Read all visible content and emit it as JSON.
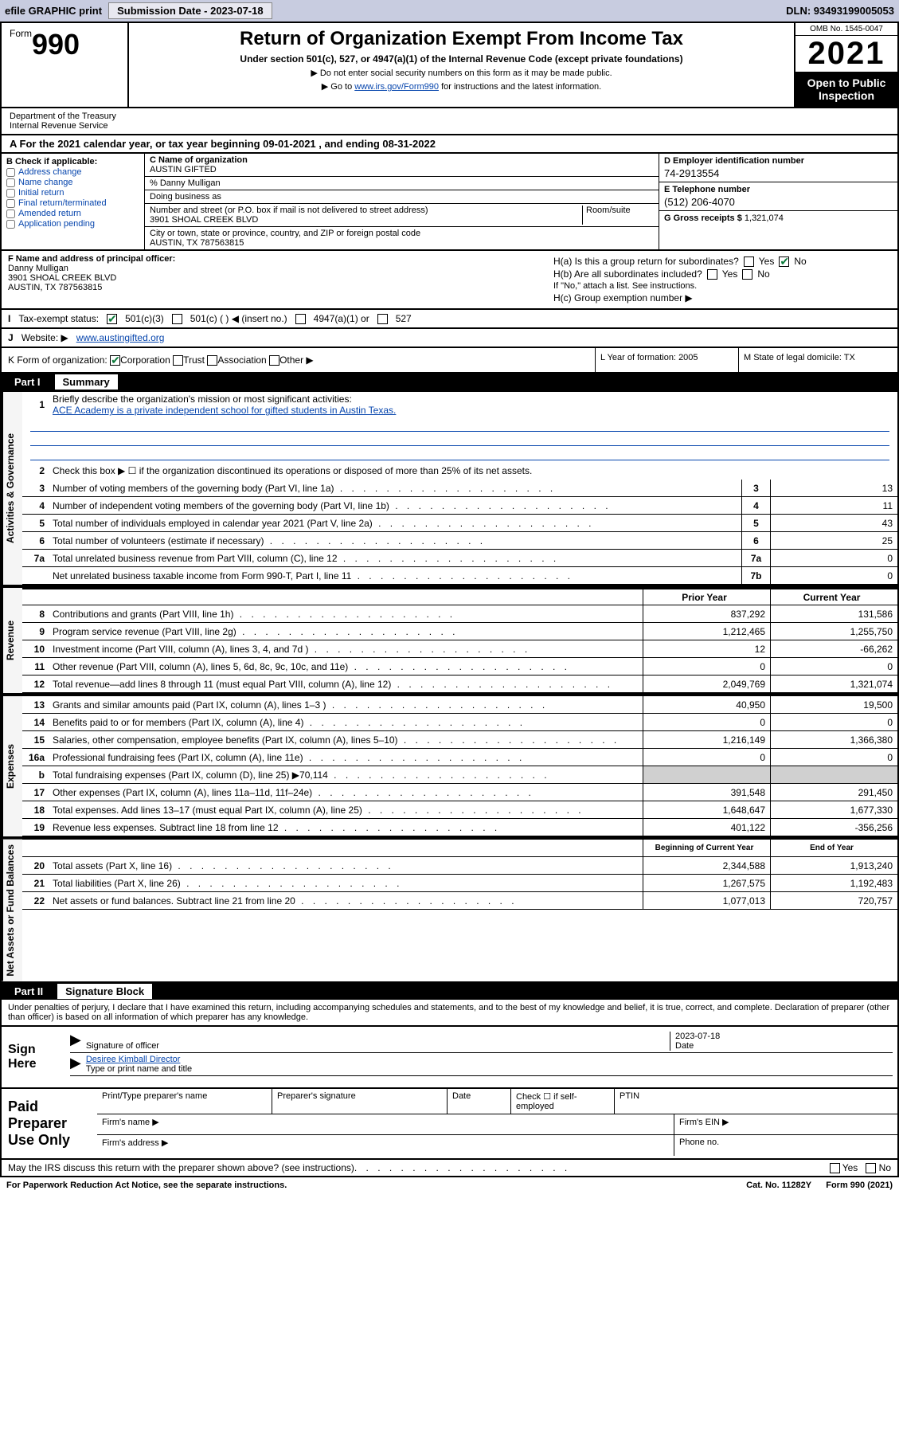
{
  "topbar": {
    "efile": "efile GRAPHIC print",
    "submission_label": "Submission Date - 2023-07-18",
    "dln": "DLN: 93493199005053"
  },
  "header": {
    "form_word": "Form",
    "form_num": "990",
    "title": "Return of Organization Exempt From Income Tax",
    "subtitle": "Under section 501(c), 527, or 4947(a)(1) of the Internal Revenue Code (except private foundations)",
    "instr1": "▶ Do not enter social security numbers on this form as it may be made public.",
    "instr2_pre": "▶ Go to ",
    "instr2_link": "www.irs.gov/Form990",
    "instr2_post": " for instructions and the latest information.",
    "omb": "OMB No. 1545-0047",
    "year": "2021",
    "open": "Open to Public Inspection",
    "dept": "Department of the Treasury",
    "irs": "Internal Revenue Service"
  },
  "line_a": "For the 2021 calendar year, or tax year beginning 09-01-2021  , and ending 08-31-2022",
  "box_b": {
    "header": "B Check if applicable:",
    "items": [
      "Address change",
      "Name change",
      "Initial return",
      "Final return/terminated",
      "Amended return",
      "Application pending"
    ]
  },
  "box_c": {
    "name_lbl": "C Name of organization",
    "name": "AUSTIN GIFTED",
    "care_of": "% Danny Mulligan",
    "dba_lbl": "Doing business as",
    "addr_lbl": "Number and street (or P.O. box if mail is not delivered to street address)",
    "room_lbl": "Room/suite",
    "addr": "3901 SHOAL CREEK BLVD",
    "city_lbl": "City or town, state or province, country, and ZIP or foreign postal code",
    "city": "AUSTIN, TX  787563815"
  },
  "box_d": {
    "lbl": "D Employer identification number",
    "val": "74-2913554"
  },
  "box_e": {
    "lbl": "E Telephone number",
    "val": "(512) 206-4070"
  },
  "box_g": {
    "lbl": "G Gross receipts $",
    "val": "1,321,074"
  },
  "box_f": {
    "lbl": "F Name and address of principal officer:",
    "name": "Danny Mulligan",
    "addr": "3901 SHOAL CREEK BLVD",
    "city": "AUSTIN, TX  787563815"
  },
  "box_h": {
    "a_lbl": "H(a)  Is this a group return for subordinates?",
    "b_lbl": "H(b)  Are all subordinates included?",
    "b_note": "If \"No,\" attach a list. See instructions.",
    "c_lbl": "H(c)  Group exemption number ▶",
    "yes": "Yes",
    "no": "No"
  },
  "row_i": {
    "lbl": "I",
    "text": "Tax-exempt status:",
    "o1": "501(c)(3)",
    "o2": "501(c) (  ) ◀ (insert no.)",
    "o3": "4947(a)(1) or",
    "o4": "527"
  },
  "row_j": {
    "lbl": "J",
    "text": "Website: ▶",
    "val": "www.austingifted.org"
  },
  "row_k": {
    "lbl": "K Form of organization:",
    "o1": "Corporation",
    "o2": "Trust",
    "o3": "Association",
    "o4": "Other ▶"
  },
  "row_l": {
    "lbl": "L Year of formation:",
    "val": "2005"
  },
  "row_m": {
    "lbl": "M State of legal domicile:",
    "val": "TX"
  },
  "part1": {
    "num": "Part I",
    "title": "Summary"
  },
  "summary": {
    "q1": "Briefly describe the organization's mission or most significant activities:",
    "q1_ans": "ACE Academy is a private independent school for gifted students in Austin Texas.",
    "q2": "Check this box ▶ ☐  if the organization discontinued its operations or disposed of more than 25% of its net assets.",
    "rows_single": [
      {
        "n": "3",
        "t": "Number of voting members of the governing body (Part VI, line 1a)",
        "c": "3",
        "v": "13"
      },
      {
        "n": "4",
        "t": "Number of independent voting members of the governing body (Part VI, line 1b)",
        "c": "4",
        "v": "11"
      },
      {
        "n": "5",
        "t": "Total number of individuals employed in calendar year 2021 (Part V, line 2a)",
        "c": "5",
        "v": "43"
      },
      {
        "n": "6",
        "t": "Total number of volunteers (estimate if necessary)",
        "c": "6",
        "v": "25"
      },
      {
        "n": "7a",
        "t": "Total unrelated business revenue from Part VIII, column (C), line 12",
        "c": "7a",
        "v": "0"
      },
      {
        "n": "",
        "t": "Net unrelated business taxable income from Form 990-T, Part I, line 11",
        "c": "7b",
        "v": "0"
      }
    ],
    "prior_hdr": "Prior Year",
    "curr_hdr": "Current Year",
    "rows_two": [
      {
        "n": "8",
        "t": "Contributions and grants (Part VIII, line 1h)",
        "p": "837,292",
        "c": "131,586"
      },
      {
        "n": "9",
        "t": "Program service revenue (Part VIII, line 2g)",
        "p": "1,212,465",
        "c": "1,255,750"
      },
      {
        "n": "10",
        "t": "Investment income (Part VIII, column (A), lines 3, 4, and 7d )",
        "p": "12",
        "c": "-66,262"
      },
      {
        "n": "11",
        "t": "Other revenue (Part VIII, column (A), lines 5, 6d, 8c, 9c, 10c, and 11e)",
        "p": "0",
        "c": "0"
      },
      {
        "n": "12",
        "t": "Total revenue—add lines 8 through 11 (must equal Part VIII, column (A), line 12)",
        "p": "2,049,769",
        "c": "1,321,074"
      }
    ],
    "rows_exp": [
      {
        "n": "13",
        "t": "Grants and similar amounts paid (Part IX, column (A), lines 1–3 )",
        "p": "40,950",
        "c": "19,500"
      },
      {
        "n": "14",
        "t": "Benefits paid to or for members (Part IX, column (A), line 4)",
        "p": "0",
        "c": "0"
      },
      {
        "n": "15",
        "t": "Salaries, other compensation, employee benefits (Part IX, column (A), lines 5–10)",
        "p": "1,216,149",
        "c": "1,366,380"
      },
      {
        "n": "16a",
        "t": "Professional fundraising fees (Part IX, column (A), line 11e)",
        "p": "0",
        "c": "0"
      },
      {
        "n": "b",
        "t": "Total fundraising expenses (Part IX, column (D), line 25) ▶70,114",
        "p": "",
        "c": "",
        "shaded": true
      },
      {
        "n": "17",
        "t": "Other expenses (Part IX, column (A), lines 11a–11d, 11f–24e)",
        "p": "391,548",
        "c": "291,450"
      },
      {
        "n": "18",
        "t": "Total expenses. Add lines 13–17 (must equal Part IX, column (A), line 25)",
        "p": "1,648,647",
        "c": "1,677,330"
      },
      {
        "n": "19",
        "t": "Revenue less expenses. Subtract line 18 from line 12",
        "p": "401,122",
        "c": "-356,256"
      }
    ],
    "beg_hdr": "Beginning of Current Year",
    "end_hdr": "End of Year",
    "rows_net": [
      {
        "n": "20",
        "t": "Total assets (Part X, line 16)",
        "p": "2,344,588",
        "c": "1,913,240"
      },
      {
        "n": "21",
        "t": "Total liabilities (Part X, line 26)",
        "p": "1,267,575",
        "c": "1,192,483"
      },
      {
        "n": "22",
        "t": "Net assets or fund balances. Subtract line 21 from line 20",
        "p": "1,077,013",
        "c": "720,757"
      }
    ]
  },
  "labels": {
    "activities": "Activities & Governance",
    "revenue": "Revenue",
    "expenses": "Expenses",
    "netassets": "Net Assets or Fund Balances"
  },
  "part2": {
    "num": "Part II",
    "title": "Signature Block"
  },
  "sig": {
    "perjury": "Under penalties of perjury, I declare that I have examined this return, including accompanying schedules and statements, and to the best of my knowledge and belief, it is true, correct, and complete. Declaration of preparer (other than officer) is based on all information of which preparer has any knowledge.",
    "sign_here": "Sign Here",
    "sig_officer": "Signature of officer",
    "date_lbl": "Date",
    "date_val": "2023-07-18",
    "name_title": "Desiree Kimball  Director",
    "type_lbl": "Type or print name and title"
  },
  "paid": {
    "title": "Paid Preparer Use Only",
    "c1": "Print/Type preparer's name",
    "c2": "Preparer's signature",
    "c3": "Date",
    "c4": "Check ☐ if self-employed",
    "c5": "PTIN",
    "firm_name": "Firm's name  ▶",
    "firm_ein": "Firm's EIN ▶",
    "firm_addr": "Firm's address ▶",
    "phone": "Phone no."
  },
  "footer": {
    "discuss": "May the IRS discuss this return with the preparer shown above? (see instructions)",
    "yes": "Yes",
    "no": "No",
    "paperwork": "For Paperwork Reduction Act Notice, see the separate instructions.",
    "cat": "Cat. No. 11282Y",
    "form": "Form 990 (2021)"
  }
}
